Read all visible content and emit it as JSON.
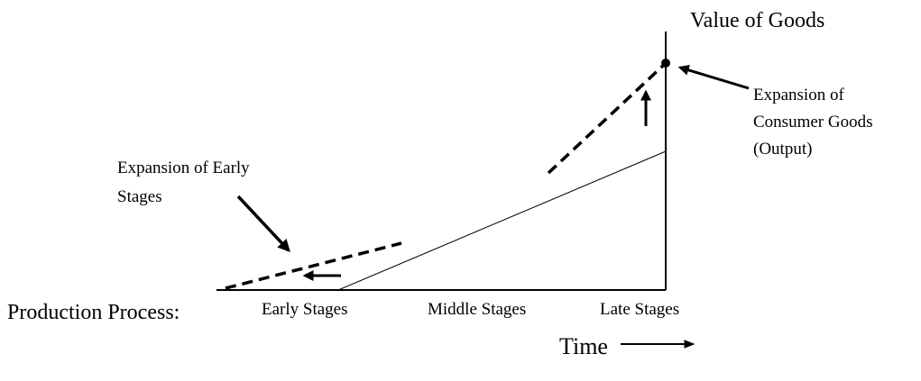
{
  "axis_y_label": "Value of Goods",
  "axis_x_label": "Time",
  "process_label": "Production Process:",
  "stages": [
    "Early Stages",
    "Middle Stages",
    "Late Stages"
  ],
  "annotations": {
    "early": [
      "Expansion of Early",
      "Stages"
    ],
    "consumer": [
      "Expansion of",
      "Consumer Goods",
      "(Output)"
    ]
  }
}
